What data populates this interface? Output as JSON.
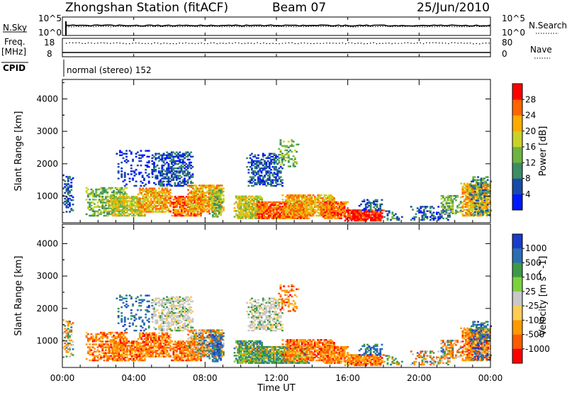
{
  "header": {
    "title": "Zhongshan Station (fitACF)",
    "beam": "Beam 07",
    "date": "25/Jun/2010"
  },
  "top_panels": {
    "nsky_label": "N.Sky",
    "nsky_top": "10^5",
    "nsky_bottom": "10^0",
    "nsearch_label": "N.Search",
    "nsearch_top": "10^5",
    "nsearch_bottom": "10^0",
    "freq_label_line1": "Freq.",
    "freq_label_line2": "[MHz]",
    "freq_top": "18",
    "freq_bottom": "8",
    "nave_top": "80",
    "nave_bottom": "0",
    "nave_label": "Nave",
    "cpid_label": "CPID",
    "cpid_text": "normal (stereo) 152"
  },
  "colors": {
    "velocity_scale": [
      "#ff0000",
      "#ff5a00",
      "#ff9900",
      "#ffcc55",
      "#c8c8c8",
      "#7cd23c",
      "#3c9a46",
      "#2a6eb4",
      "#1a3cc8"
    ],
    "power_scale": [
      "#0018ff",
      "#1a4aa8",
      "#3c8c64",
      "#6eb441",
      "#c8d228",
      "#ffaa00",
      "#ff6400",
      "#ff0000"
    ]
  },
  "chart_data": [
    {
      "type": "heatmap",
      "name": "power",
      "ylabel": "Slant Range [km]",
      "xlabel": "Time UT",
      "colorbar_label": "Power [dB]",
      "colorbar_ticks": [
        "4",
        "8",
        "12",
        "16",
        "20",
        "24",
        "28"
      ],
      "colorbar_range": [
        0,
        32
      ],
      "yticks": [
        "1000",
        "2000",
        "3000",
        "4000"
      ],
      "ylim": [
        180,
        4600
      ],
      "xticks": [
        "00:00",
        "04:00",
        "08:00",
        "12:00",
        "16:00",
        "20:00",
        "00:00"
      ],
      "xlim_hours": [
        0,
        24
      ]
    },
    {
      "type": "heatmap",
      "name": "velocity",
      "ylabel": "Slant Range [km]",
      "xlabel": "Time UT",
      "colorbar_label": "Velocity [m s^-1]",
      "colorbar_ticks": [
        "1000",
        "500",
        "100",
        "25",
        "-25",
        "-100",
        "-500",
        "-1000"
      ],
      "yticks": [
        "1000",
        "2000",
        "3000",
        "4000"
      ],
      "ylim": [
        180,
        4600
      ],
      "xticks": [
        "00:00",
        "04:00",
        "08:00",
        "12:00",
        "16:00",
        "20:00",
        "00:00"
      ],
      "xlim_hours": [
        0,
        24
      ]
    }
  ]
}
